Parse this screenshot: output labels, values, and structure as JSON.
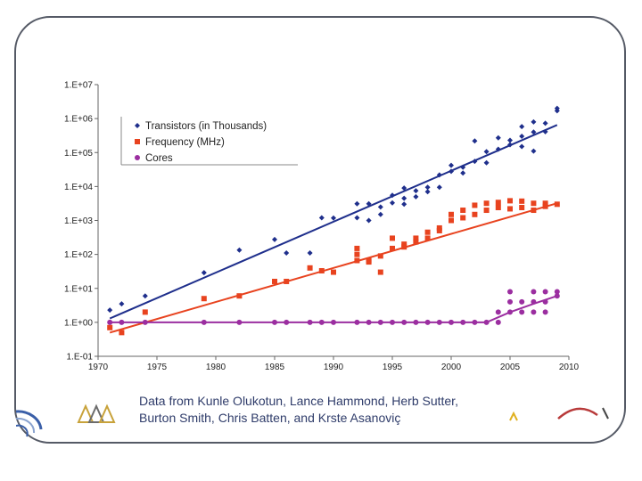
{
  "caption": {
    "line1": "Data from Kunle Olukotun, Lance Hammond, Herb Sutter,",
    "line2": "Burton Smith, Chris Batten, and Krste Asanoviç"
  },
  "colors": {
    "transistors": "#1f2f8c",
    "frequency": "#e8431f",
    "cores": "#9b2ea0",
    "frame": "#555a66",
    "caption": "#2f3c6a"
  },
  "chart_data": {
    "type": "scatter",
    "title": "",
    "xlabel": "",
    "ylabel": "",
    "yscale": "log",
    "xlim": [
      1970,
      2010
    ],
    "ylim": [
      0.1,
      10000000
    ],
    "x_ticks": [
      "1970",
      "1975",
      "1980",
      "1985",
      "1990",
      "1995",
      "2000",
      "2005",
      "2010"
    ],
    "y_ticks": [
      "1.E+07",
      "1.E+06",
      "1.E+05",
      "1.E+04",
      "1.E+03",
      "1.E+02",
      "1.E+01",
      "1.E+00",
      "1.E-01"
    ],
    "grid": false,
    "legend_position": "top-left",
    "series": [
      {
        "name": "Transistors (in Thousands)",
        "marker": "diamond",
        "trend": [
          [
            1971,
            1.3
          ],
          [
            2009,
            650000
          ]
        ],
        "points": [
          [
            1971,
            2.3
          ],
          [
            1972,
            3.5
          ],
          [
            1974,
            6
          ],
          [
            1979,
            29
          ],
          [
            1982,
            134
          ],
          [
            1985,
            275
          ],
          [
            1986,
            110
          ],
          [
            1988,
            110
          ],
          [
            1989,
            1200
          ],
          [
            1990,
            1180
          ],
          [
            1992,
            3100
          ],
          [
            1992,
            1200
          ],
          [
            1993,
            3100
          ],
          [
            1993,
            1000
          ],
          [
            1994,
            2500
          ],
          [
            1994,
            1500
          ],
          [
            1995,
            5500
          ],
          [
            1995,
            3300
          ],
          [
            1996,
            9000
          ],
          [
            1996,
            4500
          ],
          [
            1996,
            3000
          ],
          [
            1997,
            7500
          ],
          [
            1997,
            5000
          ],
          [
            1998,
            9500
          ],
          [
            1998,
            7000
          ],
          [
            1999,
            22000
          ],
          [
            1999,
            9500
          ],
          [
            2000,
            42000
          ],
          [
            2000,
            28000
          ],
          [
            2001,
            37000
          ],
          [
            2001,
            25000
          ],
          [
            2002,
            220000
          ],
          [
            2002,
            55000
          ],
          [
            2003,
            106000
          ],
          [
            2003,
            50000
          ],
          [
            2004,
            125000
          ],
          [
            2004,
            270000
          ],
          [
            2005,
            230000
          ],
          [
            2005,
            170000
          ],
          [
            2006,
            300000
          ],
          [
            2006,
            580000
          ],
          [
            2006,
            150000
          ],
          [
            2007,
            800000
          ],
          [
            2007,
            400000
          ],
          [
            2007,
            110000
          ],
          [
            2008,
            730000
          ],
          [
            2008,
            410000
          ],
          [
            2009,
            2000000
          ],
          [
            2009,
            1700000
          ]
        ]
      },
      {
        "name": "Frequency (MHz)",
        "marker": "square",
        "trend": [
          [
            1971,
            0.5
          ],
          [
            2009,
            3200
          ]
        ],
        "points": [
          [
            1971,
            0.7
          ],
          [
            1972,
            0.5
          ],
          [
            1974,
            2
          ],
          [
            1979,
            5
          ],
          [
            1982,
            6
          ],
          [
            1985,
            16
          ],
          [
            1986,
            16
          ],
          [
            1988,
            40
          ],
          [
            1989,
            33
          ],
          [
            1990,
            30
          ],
          [
            1992,
            150
          ],
          [
            1992,
            66
          ],
          [
            1992,
            100
          ],
          [
            1993,
            60
          ],
          [
            1993,
            66
          ],
          [
            1994,
            90
          ],
          [
            1994,
            30
          ],
          [
            1995,
            300
          ],
          [
            1995,
            150
          ],
          [
            1996,
            200
          ],
          [
            1996,
            166
          ],
          [
            1997,
            300
          ],
          [
            1997,
            233
          ],
          [
            1998,
            450
          ],
          [
            1998,
            300
          ],
          [
            1999,
            600
          ],
          [
            1999,
            500
          ],
          [
            2000,
            1500
          ],
          [
            2000,
            1000
          ],
          [
            2001,
            2000
          ],
          [
            2001,
            1200
          ],
          [
            2002,
            2800
          ],
          [
            2002,
            1500
          ],
          [
            2003,
            2000
          ],
          [
            2003,
            3200
          ],
          [
            2004,
            3400
          ],
          [
            2004,
            2400
          ],
          [
            2005,
            3800
          ],
          [
            2005,
            2200
          ],
          [
            2006,
            3700
          ],
          [
            2006,
            2400
          ],
          [
            2007,
            3200
          ],
          [
            2007,
            2000
          ],
          [
            2008,
            3200
          ],
          [
            2008,
            2600
          ],
          [
            2009,
            3000
          ]
        ]
      },
      {
        "name": "Cores",
        "marker": "circle",
        "trend": [
          [
            1971,
            1
          ],
          [
            2003,
            1
          ],
          [
            2005,
            2
          ],
          [
            2007,
            3.5
          ],
          [
            2009,
            6
          ]
        ],
        "points": [
          [
            1971,
            1
          ],
          [
            1972,
            1
          ],
          [
            1974,
            1
          ],
          [
            1979,
            1
          ],
          [
            1982,
            1
          ],
          [
            1985,
            1
          ],
          [
            1986,
            1
          ],
          [
            1988,
            1
          ],
          [
            1989,
            1
          ],
          [
            1990,
            1
          ],
          [
            1992,
            1
          ],
          [
            1993,
            1
          ],
          [
            1994,
            1
          ],
          [
            1995,
            1
          ],
          [
            1996,
            1
          ],
          [
            1997,
            1
          ],
          [
            1998,
            1
          ],
          [
            1999,
            1
          ],
          [
            2000,
            1
          ],
          [
            2001,
            1
          ],
          [
            2002,
            1
          ],
          [
            2003,
            1
          ],
          [
            2004,
            1
          ],
          [
            2004,
            2
          ],
          [
            2005,
            2
          ],
          [
            2005,
            8
          ],
          [
            2005,
            4
          ],
          [
            2006,
            2
          ],
          [
            2006,
            4
          ],
          [
            2007,
            4
          ],
          [
            2007,
            8
          ],
          [
            2007,
            2
          ],
          [
            2008,
            8
          ],
          [
            2008,
            4
          ],
          [
            2008,
            2
          ],
          [
            2009,
            6
          ],
          [
            2009,
            8
          ]
        ]
      }
    ]
  }
}
